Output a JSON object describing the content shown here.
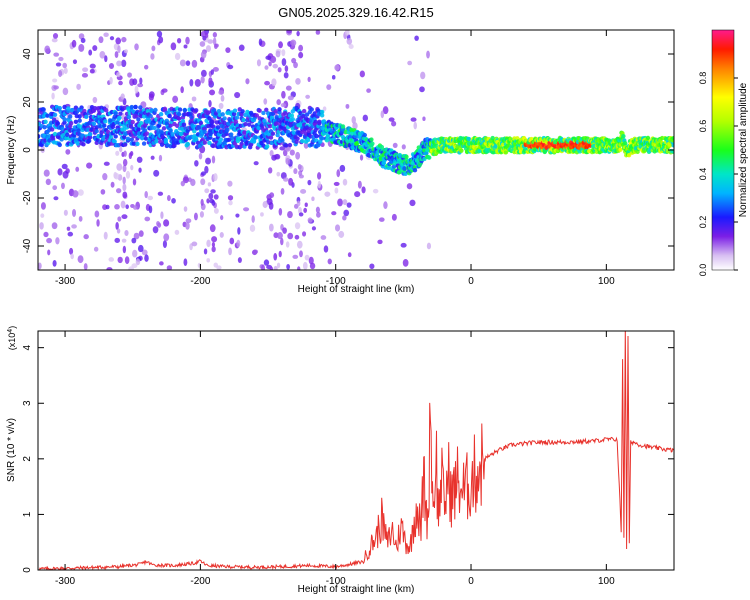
{
  "figure_title": "GN05.2025.329.16.42.R15",
  "chart_data": [
    {
      "type": "heatmap",
      "id": "spectrogram",
      "xlabel": "Height of straight line (km)",
      "ylabel": "Frequency (Hz)",
      "xlim": [
        -320,
        150
      ],
      "ylim": [
        -50,
        50
      ],
      "xticks": [
        -300,
        -200,
        -100,
        0,
        100
      ],
      "yticks": [
        -40,
        -20,
        0,
        20,
        40
      ],
      "colorbar": {
        "label": "Normalized spectral amplitude",
        "range": [
          0,
          1
        ],
        "ticks": [
          0.0,
          0.2,
          0.4,
          0.6,
          0.8
        ]
      },
      "ridge": {
        "x": [
          -320,
          -250,
          -200,
          -150,
          -120,
          -100,
          -80,
          -65,
          -55,
          -45,
          -40,
          -35,
          -30,
          -20,
          0,
          20,
          50,
          80,
          100,
          110,
          112,
          115,
          120,
          150
        ],
        "y": [
          10,
          10,
          9,
          9,
          10,
          7,
          3,
          -3,
          -5,
          -7,
          -4,
          0,
          1,
          2,
          2,
          2,
          2,
          2,
          2,
          2,
          6,
          0,
          2,
          2
        ]
      }
    },
    {
      "type": "line",
      "id": "snr",
      "xlabel": "Height of straight line (km)",
      "ylabel": "SNR (10 * v/v)",
      "y_multiplier": "(x10",
      "y_multiplier_exp": "4",
      "y_multiplier_close": ")",
      "xlim": [
        -320,
        150
      ],
      "ylim": [
        0,
        4.3
      ],
      "xticks": [
        -300,
        -200,
        -100,
        0,
        100
      ],
      "yticks": [
        0,
        1,
        2,
        3,
        4
      ],
      "line_color": "#e8322c",
      "series": [
        {
          "x": [
            -320,
            -300,
            -260,
            -245,
            -240,
            -235,
            -220,
            -205,
            -200,
            -195,
            -180,
            -160,
            -140,
            -120,
            -100,
            -90,
            -80,
            -75,
            -70,
            -66,
            -62,
            -58,
            -55,
            -52,
            -48,
            -45,
            -42,
            -40,
            -37,
            -35,
            -32,
            -30,
            -28,
            -26,
            -24,
            -22,
            -20,
            -17,
            -14,
            -10,
            -5,
            0,
            5,
            10,
            20,
            30,
            50,
            70,
            90,
            100,
            108,
            111,
            112,
            113,
            114,
            115,
            116,
            117,
            118,
            120,
            125,
            135,
            150
          ],
          "y": [
            0.02,
            0.03,
            0.06,
            0.1,
            0.15,
            0.09,
            0.08,
            0.12,
            0.16,
            0.08,
            0.06,
            0.05,
            0.06,
            0.08,
            0.06,
            0.1,
            0.15,
            0.4,
            0.6,
            0.9,
            0.5,
            0.7,
            0.4,
            0.8,
            0.5,
            0.4,
            0.9,
            1.2,
            0.7,
            1.7,
            0.8,
            3.1,
            1.0,
            2.2,
            0.9,
            1.8,
            1.1,
            1.7,
            1.3,
            1.6,
            1.4,
            1.6,
            1.8,
            2.0,
            2.15,
            2.25,
            2.3,
            2.3,
            2.32,
            2.35,
            2.35,
            0.7,
            3.8,
            0.6,
            4.35,
            0.4,
            4.2,
            0.5,
            2.3,
            2.3,
            2.25,
            2.2,
            2.15
          ]
        }
      ]
    }
  ]
}
